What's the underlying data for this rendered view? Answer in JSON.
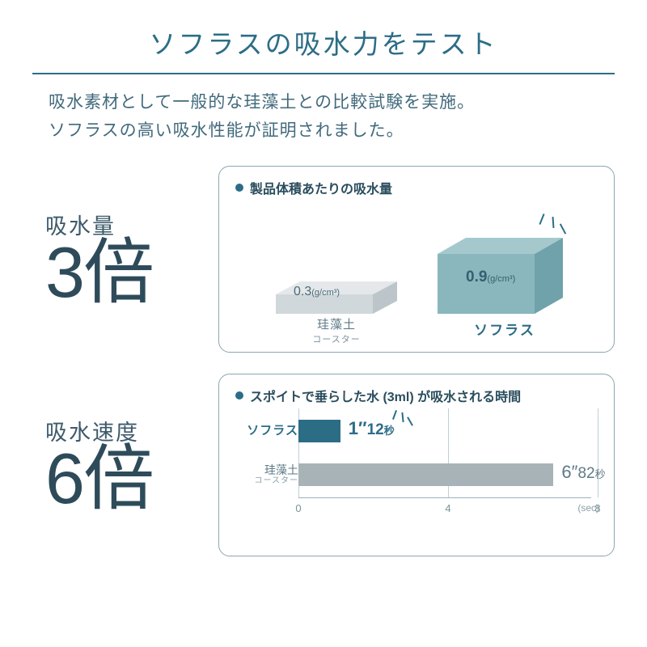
{
  "title": "ソフラスの吸水力をテスト",
  "lead_line1": "吸水素材として一般的な珪藻土との比較試験を実施。",
  "lead_line2": "ソフラスの高い吸水性能が証明されました。",
  "colors": {
    "accent": "#2c6d86",
    "text": "#3d5a6a",
    "panel_border": "#8aa7af",
    "grey_bar": "#a8b3b7",
    "grid": "#c0cfd5",
    "block_teal_top": "#a5c8cd",
    "block_teal_front": "#8ab6bd",
    "block_teal_side": "#6fa2aa",
    "block_grey_top": "#e4e8ea",
    "block_grey_front": "#d1d8db",
    "block_grey_side": "#bcc6ca"
  },
  "metric1": {
    "label": "吸水量",
    "value": "3倍"
  },
  "metric2": {
    "label": "吸水速度",
    "value": "6倍"
  },
  "panel1": {
    "title": "製品体積あたりの吸水量",
    "left": {
      "value": "0.3",
      "unit": "(g/cm³)",
      "label": "珪藻土",
      "sublabel": "コースター",
      "height_ratio": 0.33
    },
    "right": {
      "value": "0.9",
      "unit": "(g/cm³)",
      "label": "ソフラス",
      "height_ratio": 1.0
    }
  },
  "panel2": {
    "title": "スポイトで垂らした水 (3ml) が吸水される時間",
    "x_max_sec": 8,
    "x_ticks": [
      0,
      4,
      8
    ],
    "x_unit": "(sec)",
    "bars": [
      {
        "label": "ソフラス",
        "seconds": 1.12,
        "display_int": "1",
        "display_dec": "12",
        "unit": "秒",
        "color": "green"
      },
      {
        "label": "珪藻土",
        "sublabel": "コースター",
        "seconds": 6.82,
        "display_int": "6",
        "display_dec": "82",
        "unit": "秒",
        "color": "grey"
      }
    ]
  }
}
